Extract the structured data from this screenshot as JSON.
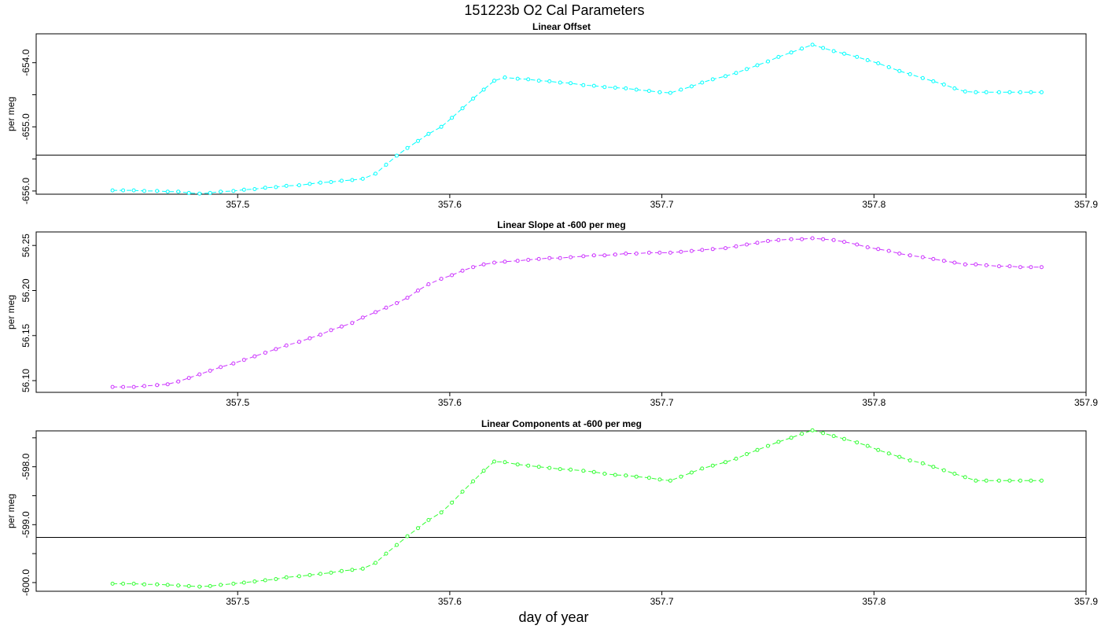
{
  "title": "151223b   O2 Cal Parameters",
  "xlabel": "day of year",
  "chart_data": [
    {
      "type": "line",
      "title": "Linear Offset",
      "ylabel": "per meg",
      "color": "#00ffff",
      "xlim": [
        357.405,
        357.9
      ],
      "ylim": [
        -656.05,
        -653.55
      ],
      "xticks": [
        "357.5",
        "357.6",
        "357.7",
        "357.8",
        "357.9"
      ],
      "yticks": [
        "-654.0",
        "-655.0",
        "-656.0"
      ],
      "ytick_values": [
        -654.0,
        -655.0,
        -656.0
      ],
      "minor_yticks": [
        -653.5,
        -654.5,
        -655.5
      ],
      "hline": -655.44,
      "x": [
        357.441,
        357.446,
        357.451,
        357.456,
        357.462,
        357.467,
        357.472,
        357.477,
        357.482,
        357.487,
        357.492,
        357.498,
        357.503,
        357.508,
        357.513,
        357.518,
        357.523,
        357.529,
        357.534,
        357.539,
        357.544,
        357.549,
        357.554,
        357.559,
        357.565,
        357.57,
        357.575,
        357.58,
        357.585,
        357.59,
        357.596,
        357.601,
        357.606,
        357.611,
        357.616,
        357.621,
        357.626,
        357.632,
        357.637,
        357.642,
        357.647,
        357.652,
        357.657,
        357.663,
        357.668,
        357.673,
        357.678,
        357.683,
        357.688,
        357.694,
        357.699,
        357.704,
        357.709,
        357.714,
        357.719,
        357.724,
        357.73,
        357.735,
        357.74,
        357.745,
        357.75,
        357.755,
        357.761,
        357.766,
        357.771,
        357.776,
        357.781,
        357.786,
        357.792,
        357.797,
        357.802,
        357.807,
        357.812,
        357.817,
        357.823,
        357.828,
        357.833,
        357.838,
        357.843,
        357.848,
        357.853,
        357.859,
        357.864,
        357.869,
        357.874,
        357.879
      ],
      "y": [
        -655.99,
        -655.99,
        -655.99,
        -656.0,
        -656.0,
        -656.01,
        -656.01,
        -656.03,
        -656.04,
        -656.03,
        -656.01,
        -656.0,
        -655.98,
        -655.97,
        -655.95,
        -655.94,
        -655.92,
        -655.91,
        -655.89,
        -655.87,
        -655.86,
        -655.84,
        -655.83,
        -655.81,
        -655.73,
        -655.59,
        -655.45,
        -655.33,
        -655.22,
        -655.11,
        -655.0,
        -654.86,
        -654.71,
        -654.56,
        -654.42,
        -654.28,
        -654.23,
        -654.25,
        -654.26,
        -654.28,
        -654.29,
        -654.31,
        -654.32,
        -654.35,
        -654.36,
        -654.38,
        -654.39,
        -654.4,
        -654.42,
        -654.44,
        -654.46,
        -654.47,
        -654.42,
        -654.37,
        -654.31,
        -654.26,
        -654.21,
        -654.16,
        -654.1,
        -654.04,
        -653.98,
        -653.91,
        -653.84,
        -653.78,
        -653.72,
        -653.77,
        -653.82,
        -653.86,
        -653.91,
        -653.96,
        -654.01,
        -654.07,
        -654.13,
        -654.18,
        -654.24,
        -654.29,
        -654.34,
        -654.4,
        -654.45,
        -654.46,
        -654.46,
        -654.46,
        -654.46,
        -654.46,
        -654.46,
        -654.46
      ]
    },
    {
      "type": "line",
      "title": "Linear Slope at -600 per meg",
      "ylabel": "per meg",
      "color": "#cc33ff",
      "xlim": [
        357.405,
        357.9
      ],
      "ylim": [
        56.087,
        56.265
      ],
      "xticks": [
        "357.5",
        "357.6",
        "357.7",
        "357.8",
        "357.9"
      ],
      "yticks": [
        "56.10",
        "56.15",
        "56.20",
        "56.25"
      ],
      "ytick_values": [
        56.1,
        56.15,
        56.2,
        56.25
      ],
      "minor_yticks": [],
      "hline": null,
      "x": [
        357.441,
        357.446,
        357.451,
        357.456,
        357.462,
        357.467,
        357.472,
        357.477,
        357.482,
        357.487,
        357.492,
        357.498,
        357.503,
        357.508,
        357.513,
        357.518,
        357.523,
        357.529,
        357.534,
        357.539,
        357.544,
        357.549,
        357.554,
        357.559,
        357.565,
        357.57,
        357.575,
        357.58,
        357.585,
        357.59,
        357.596,
        357.601,
        357.606,
        357.611,
        357.616,
        357.621,
        357.626,
        357.632,
        357.637,
        357.642,
        357.647,
        357.652,
        357.657,
        357.663,
        357.668,
        357.673,
        357.678,
        357.683,
        357.688,
        357.694,
        357.699,
        357.704,
        357.709,
        357.714,
        357.719,
        357.724,
        357.73,
        357.735,
        357.74,
        357.745,
        357.75,
        357.755,
        357.761,
        357.766,
        357.771,
        357.776,
        357.781,
        357.786,
        357.792,
        357.797,
        357.802,
        357.807,
        357.812,
        357.817,
        357.823,
        357.828,
        357.833,
        357.838,
        357.843,
        357.848,
        357.853,
        357.859,
        357.864,
        357.869,
        357.874,
        357.879
      ],
      "y": [
        56.093,
        56.093,
        56.093,
        56.094,
        56.095,
        56.096,
        56.099,
        56.103,
        56.107,
        56.111,
        56.115,
        56.119,
        56.123,
        56.127,
        56.131,
        56.135,
        56.139,
        56.143,
        56.147,
        56.151,
        56.156,
        56.16,
        56.164,
        56.17,
        56.176,
        56.181,
        56.186,
        56.192,
        56.2,
        56.207,
        56.213,
        56.217,
        56.222,
        56.226,
        56.229,
        56.231,
        56.232,
        56.233,
        56.234,
        56.235,
        56.236,
        56.236,
        56.237,
        56.238,
        56.239,
        56.239,
        56.24,
        56.241,
        56.241,
        56.242,
        56.242,
        56.242,
        56.243,
        56.244,
        56.245,
        56.246,
        56.247,
        56.249,
        56.251,
        56.253,
        56.255,
        56.256,
        56.257,
        56.257,
        56.258,
        56.257,
        56.256,
        56.254,
        56.251,
        56.248,
        56.246,
        56.244,
        56.241,
        56.239,
        56.237,
        56.235,
        56.233,
        56.231,
        56.229,
        56.229,
        56.228,
        56.227,
        56.227,
        56.226,
        56.226,
        56.226
      ]
    },
    {
      "type": "line",
      "title": "Linear Components at -600 per meg",
      "ylabel": "per meg",
      "color": "#33ff33",
      "xlim": [
        357.405,
        357.9
      ],
      "ylim": [
        -600.15,
        -597.38
      ],
      "xticks": [
        "357.5",
        "357.6",
        "357.7",
        "357.8",
        "357.9"
      ],
      "yticks": [
        "-598.0",
        "-599.0",
        "-600.0"
      ],
      "ytick_values": [
        -598.0,
        -599.0,
        -600.0
      ],
      "minor_yticks": [
        -597.5,
        -598.5,
        -599.5
      ],
      "hline": -599.22,
      "x": [
        357.441,
        357.446,
        357.451,
        357.456,
        357.462,
        357.467,
        357.472,
        357.477,
        357.482,
        357.487,
        357.492,
        357.498,
        357.503,
        357.508,
        357.513,
        357.518,
        357.523,
        357.529,
        357.534,
        357.539,
        357.544,
        357.549,
        357.554,
        357.559,
        357.565,
        357.57,
        357.575,
        357.58,
        357.585,
        357.59,
        357.596,
        357.601,
        357.606,
        357.611,
        357.616,
        357.621,
        357.626,
        357.632,
        357.637,
        357.642,
        357.647,
        357.652,
        357.657,
        357.663,
        357.668,
        357.673,
        357.678,
        357.683,
        357.688,
        357.694,
        357.699,
        357.704,
        357.709,
        357.714,
        357.719,
        357.724,
        357.73,
        357.735,
        357.74,
        357.745,
        357.75,
        357.755,
        357.761,
        357.766,
        357.771,
        357.776,
        357.781,
        357.786,
        357.792,
        357.797,
        357.802,
        357.807,
        357.812,
        357.817,
        357.823,
        357.828,
        357.833,
        357.838,
        357.843,
        357.848,
        357.853,
        357.859,
        357.864,
        357.869,
        357.874,
        357.879
      ],
      "y": [
        -600.02,
        -600.02,
        -600.02,
        -600.03,
        -600.03,
        -600.04,
        -600.05,
        -600.06,
        -600.07,
        -600.06,
        -600.04,
        -600.02,
        -600.0,
        -599.98,
        -599.96,
        -599.94,
        -599.91,
        -599.89,
        -599.87,
        -599.85,
        -599.83,
        -599.8,
        -599.78,
        -599.76,
        -599.66,
        -599.5,
        -599.35,
        -599.2,
        -599.06,
        -598.92,
        -598.79,
        -598.62,
        -598.43,
        -598.25,
        -598.07,
        -597.91,
        -597.92,
        -597.96,
        -597.98,
        -598.0,
        -598.02,
        -598.04,
        -598.05,
        -598.07,
        -598.09,
        -598.12,
        -598.14,
        -598.15,
        -598.17,
        -598.19,
        -598.22,
        -598.24,
        -598.17,
        -598.1,
        -598.03,
        -597.98,
        -597.92,
        -597.86,
        -597.78,
        -597.71,
        -597.64,
        -597.57,
        -597.5,
        -597.43,
        -597.37,
        -597.42,
        -597.47,
        -597.52,
        -597.58,
        -597.64,
        -597.71,
        -597.77,
        -597.83,
        -597.89,
        -597.94,
        -598.0,
        -598.06,
        -598.12,
        -598.18,
        -598.24,
        -598.24,
        -598.24,
        -598.24,
        -598.24,
        -598.24,
        -598.24
      ]
    }
  ]
}
